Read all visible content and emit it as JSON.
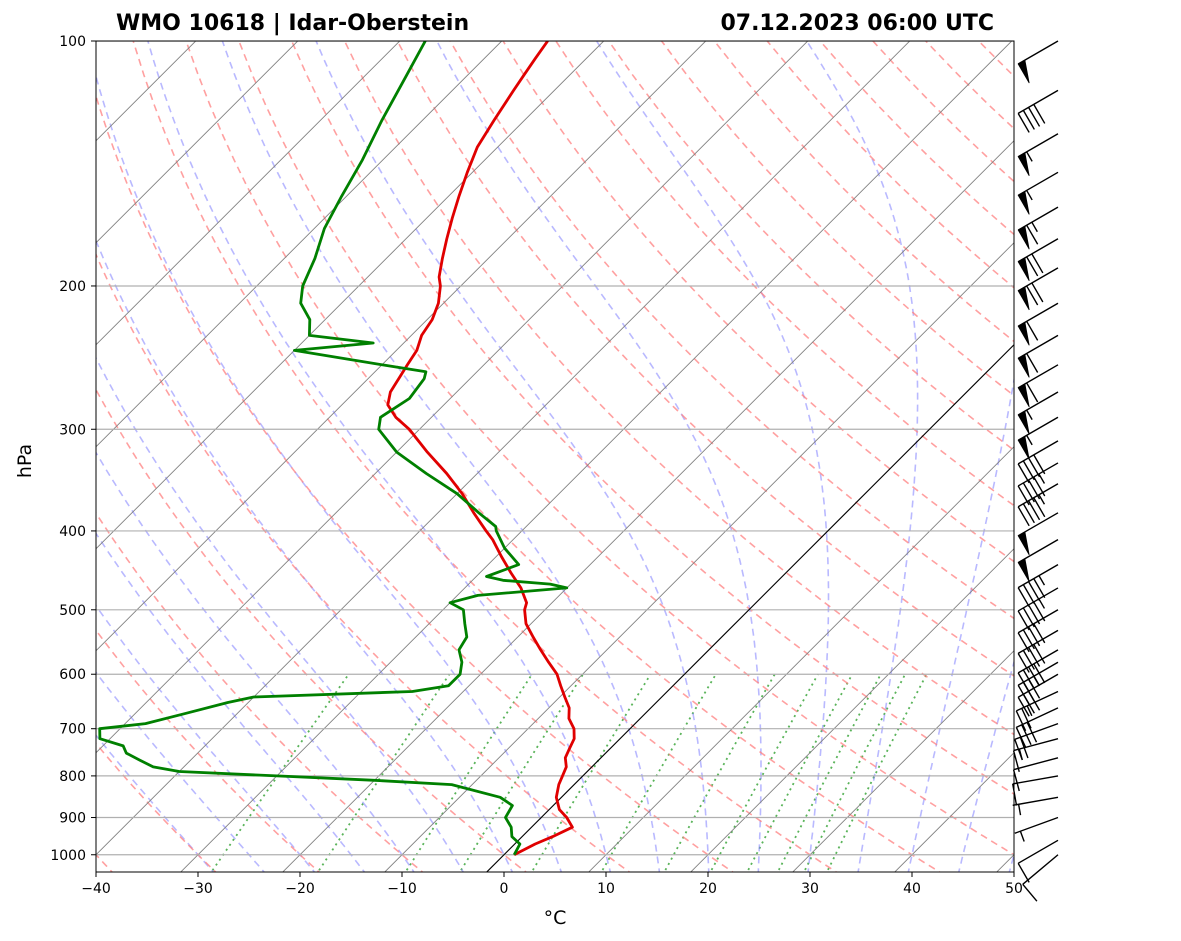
{
  "chart_data": {
    "type": "line",
    "chart_kind": "skew-T log-P sounding",
    "title_left": "WMO 10618 | Idar-Oberstein",
    "title_right": "07.12.2023 06:00 UTC",
    "xlabel": "°C",
    "ylabel": "hPa",
    "x_ticks": [
      "−40",
      "−30",
      "−20",
      "−10",
      "0",
      "10",
      "20",
      "30",
      "40",
      "50"
    ],
    "y_ticks": [
      "100",
      "200",
      "300",
      "400",
      "500",
      "600",
      "700",
      "800",
      "900",
      "1000"
    ],
    "xlim": [
      -40,
      50
    ],
    "ylim": [
      1050,
      100
    ],
    "y_scale": "log",
    "grid": true,
    "colors": {
      "temperature": "#e00000",
      "dewpoint": "#008000",
      "dry_adiabats": "#ff8080",
      "moist_adiabats": "#8080ff",
      "mixing_ratio": "#30a030",
      "isotherms": "#808080",
      "barbs": "#000000"
    },
    "series": [
      {
        "key": "temperature",
        "pressure": [
          1000,
          970,
          950,
          925,
          900,
          880,
          850,
          820,
          800,
          780,
          760,
          740,
          720,
          700,
          680,
          660,
          640,
          620,
          600,
          580,
          560,
          540,
          520,
          500,
          490,
          470,
          450,
          430,
          410,
          400,
          380,
          360,
          340,
          320,
          300,
          290,
          280,
          270,
          260,
          250,
          240,
          230,
          220,
          210,
          200,
          195,
          185,
          175,
          165,
          155,
          145,
          135,
          125,
          115,
          110,
          105,
          100
        ],
        "values": [
          1.0,
          2.0,
          3.0,
          4.0,
          2.5,
          1.0,
          -0.5,
          -1.5,
          -2.0,
          -2.5,
          -3.5,
          -4.0,
          -4.5,
          -5.5,
          -7.0,
          -8.0,
          -9.5,
          -11.0,
          -12.5,
          -14.5,
          -16.5,
          -18.5,
          -20.5,
          -22.0,
          -22.5,
          -24.5,
          -27.0,
          -29.5,
          -32.0,
          -33.5,
          -36.5,
          -39.5,
          -43.0,
          -47.0,
          -51.0,
          -53.5,
          -55.5,
          -56.5,
          -57.0,
          -57.5,
          -58.0,
          -59.0,
          -59.5,
          -60.5,
          -62.0,
          -63.0,
          -64.5,
          -66.0,
          -67.5,
          -69.0,
          -70.5,
          -72.0,
          -73.0,
          -74.0,
          -74.5,
          -75.0,
          -75.5
        ]
      },
      {
        "key": "dewpoint",
        "pressure": [
          1000,
          970,
          950,
          925,
          900,
          870,
          850,
          820,
          810,
          800,
          790,
          780,
          765,
          750,
          735,
          720,
          700,
          690,
          670,
          650,
          640,
          630,
          620,
          600,
          580,
          560,
          540,
          520,
          500,
          490,
          480,
          470,
          465,
          460,
          455,
          440,
          420,
          400,
          395,
          380,
          360,
          340,
          320,
          300,
          290,
          275,
          260,
          255,
          250,
          240,
          235,
          230,
          220,
          210,
          200,
          185,
          170,
          155,
          140,
          125,
          110,
          100
        ],
        "values": [
          1.0,
          0.5,
          -1.0,
          -2.0,
          -3.5,
          -4.0,
          -6.0,
          -12.0,
          -20.0,
          -30.0,
          -40.0,
          -43.0,
          -45.0,
          -47.0,
          -48.0,
          -51.0,
          -52.0,
          -48.0,
          -45.0,
          -42.0,
          -40.0,
          -25.0,
          -22.0,
          -22.0,
          -23.0,
          -24.5,
          -25.0,
          -26.5,
          -28.0,
          -30.0,
          -28.0,
          -20.0,
          -22.0,
          -27.0,
          -29.0,
          -27.0,
          -30.0,
          -32.5,
          -33.0,
          -36.0,
          -40.0,
          -45.0,
          -50.0,
          -54.0,
          -55.0,
          -54.0,
          -54.5,
          -55.0,
          -60.0,
          -70.0,
          -63.0,
          -70.0,
          -71.5,
          -74.0,
          -75.5,
          -77.0,
          -79.0,
          -80.5,
          -82.0,
          -84.0,
          -86.0,
          -87.5
        ]
      }
    ],
    "wind_barbs": {
      "pressure": [
        1000,
        960,
        900,
        850,
        800,
        760,
        720,
        690,
        660,
        630,
        600,
        580,
        560,
        530,
        500,
        470,
        440,
        410,
        380,
        350,
        330,
        310,
        290,
        270,
        250,
        230,
        210,
        190,
        175,
        160,
        145,
        130,
        115,
        100
      ],
      "direction_deg": [
        230,
        240,
        250,
        260,
        260,
        255,
        255,
        250,
        245,
        245,
        240,
        240,
        240,
        240,
        240,
        240,
        240,
        240,
        240,
        240,
        240,
        240,
        240,
        240,
        240,
        240,
        240,
        240,
        240,
        240,
        240,
        240,
        240,
        240
      ],
      "speed_kt": [
        10,
        10,
        5,
        5,
        10,
        10,
        15,
        20,
        30,
        25,
        30,
        35,
        40,
        40,
        40,
        45,
        45,
        50,
        50,
        45,
        45,
        40,
        55,
        55,
        60,
        60,
        60,
        70,
        70,
        65,
        55,
        55,
        40,
        50
      ]
    }
  }
}
